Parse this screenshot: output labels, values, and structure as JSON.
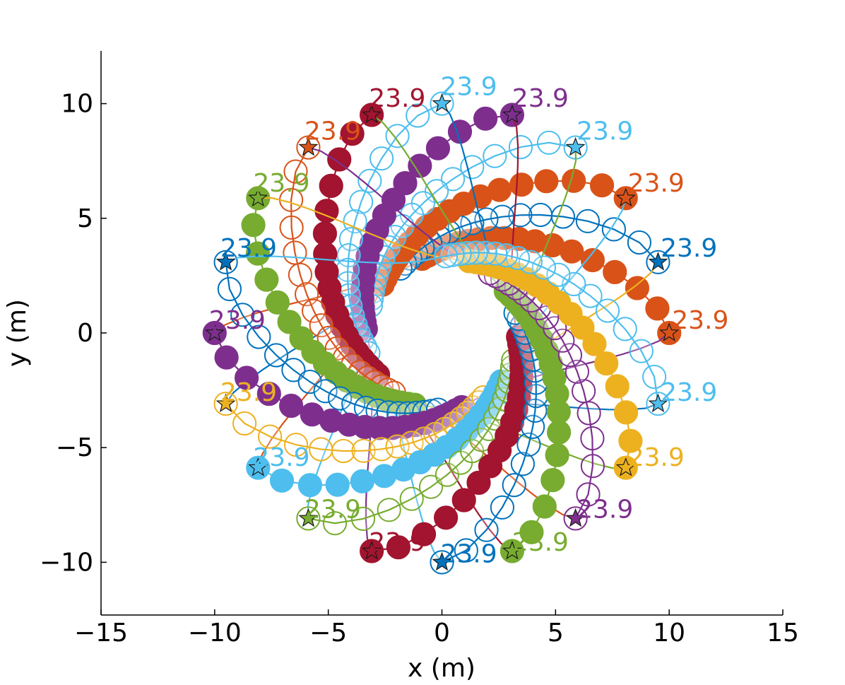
{
  "chart_data": {
    "type": "scatter",
    "title": "",
    "xlabel": "x (m)",
    "ylabel": "y (m)",
    "xlim": [
      -15,
      15
    ],
    "ylim": [
      -12.3,
      12.3
    ],
    "xticks": [
      -15,
      -10,
      -5,
      0,
      5,
      10,
      15
    ],
    "yticks": [
      -10,
      -5,
      0,
      5,
      10
    ],
    "xtick_labels": [
      "−15",
      "−10",
      "−5",
      "0",
      "5",
      "10",
      "15"
    ],
    "ytick_labels": [
      "−10",
      "−5",
      "0",
      "5",
      "10"
    ],
    "grid": false,
    "legend": "none",
    "agent_radius": 0.5,
    "agent_count": 20,
    "circle_radius": 10,
    "obstacle_radius": 3,
    "palette": [
      "#0072bd",
      "#d95319",
      "#edb120",
      "#7e2f8e",
      "#77ac30",
      "#4dbeee",
      "#a2142f"
    ],
    "agents": [
      {
        "start_angle_deg": 0,
        "end_angle_deg": 180,
        "color": "#d95319",
        "label": "23.9"
      },
      {
        "start_angle_deg": 18,
        "end_angle_deg": 198,
        "color": "#0072bd",
        "label": "23.9"
      },
      {
        "start_angle_deg": 36,
        "end_angle_deg": 216,
        "color": "#d95319",
        "label": "23.9"
      },
      {
        "start_angle_deg": 54,
        "end_angle_deg": 234,
        "color": "#4dbeee",
        "label": "23.9"
      },
      {
        "start_angle_deg": 72,
        "end_angle_deg": 252,
        "color": "#7e2f8e",
        "label": "23.9"
      },
      {
        "start_angle_deg": 90,
        "end_angle_deg": 270,
        "color": "#4dbeee",
        "label": "23.9"
      },
      {
        "start_angle_deg": 108,
        "end_angle_deg": 288,
        "color": "#a2142f",
        "label": "23.9"
      },
      {
        "start_angle_deg": 126,
        "end_angle_deg": 306,
        "color": "#d95319",
        "label": "23.9"
      },
      {
        "start_angle_deg": 144,
        "end_angle_deg": 324,
        "color": "#77ac30",
        "label": "23.9"
      },
      {
        "start_angle_deg": 162,
        "end_angle_deg": 342,
        "color": "#0072bd",
        "label": "23.9"
      },
      {
        "start_angle_deg": 180,
        "end_angle_deg": 0,
        "color": "#7e2f8e",
        "label": "23.9"
      },
      {
        "start_angle_deg": 198,
        "end_angle_deg": 18,
        "color": "#edb120",
        "label": "23.9"
      },
      {
        "start_angle_deg": 216,
        "end_angle_deg": 36,
        "color": "#4dbeee",
        "label": "23.9"
      },
      {
        "start_angle_deg": 234,
        "end_angle_deg": 54,
        "color": "#77ac30",
        "label": "23.9"
      },
      {
        "start_angle_deg": 252,
        "end_angle_deg": 72,
        "color": "#a2142f",
        "label": "23.9"
      },
      {
        "start_angle_deg": 270,
        "end_angle_deg": 90,
        "color": "#0072bd",
        "label": "23.9"
      },
      {
        "start_angle_deg": 288,
        "end_angle_deg": 108,
        "color": "#77ac30",
        "label": "23.9"
      },
      {
        "start_angle_deg": 306,
        "end_angle_deg": 126,
        "color": "#7e2f8e",
        "label": "23.9"
      },
      {
        "start_angle_deg": 324,
        "end_angle_deg": 144,
        "color": "#edb120",
        "label": "23.9"
      },
      {
        "start_angle_deg": 342,
        "end_angle_deg": 162,
        "color": "#4dbeee",
        "label": "23.9"
      }
    ]
  }
}
